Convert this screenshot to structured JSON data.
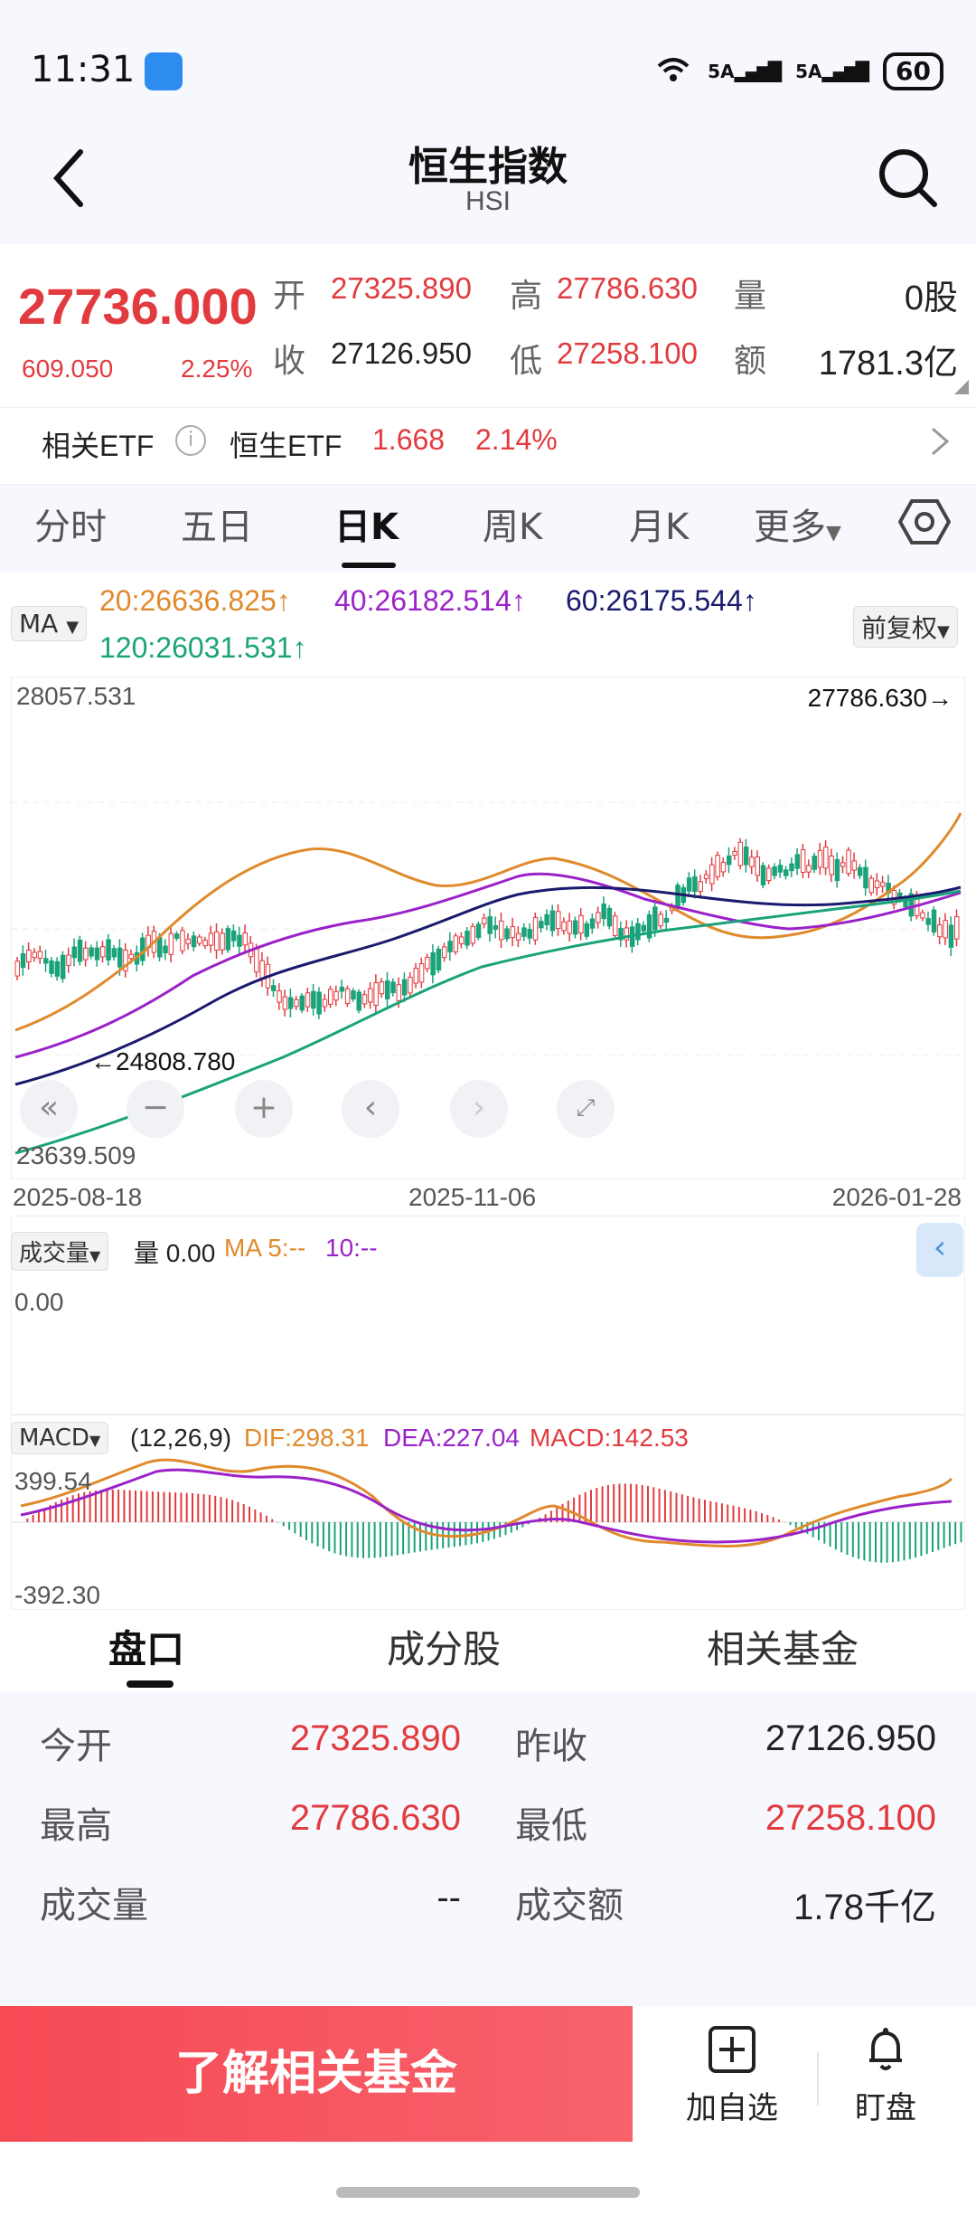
{
  "status_bar": {
    "time": "11:31",
    "signal1": "5A",
    "signal2": "5A",
    "battery": "60"
  },
  "header": {
    "title": "恒生指数",
    "subtitle": "HSI"
  },
  "quote": {
    "price": "27736.000",
    "change": "609.050",
    "change_pct": "2.25%",
    "open_label": "开",
    "open": "27325.890",
    "high_label": "高",
    "high": "27786.630",
    "volume_label": "量",
    "volume": "0股",
    "close_label": "收",
    "prev_close": "27126.950",
    "low_label": "低",
    "low": "27258.100",
    "amount_label": "额",
    "amount": "1781.3亿"
  },
  "etf": {
    "label": "相关ETF",
    "info_icon": "i",
    "name": "恒生ETF",
    "price": "1.668",
    "pct": "2.14%"
  },
  "tabs": [
    "分时",
    "五日",
    "日K",
    "周K",
    "月K",
    "更多"
  ],
  "active_tab": "日K",
  "ma": {
    "button": "MA",
    "ma20": "20:26636.825↑",
    "ma40": "40:26182.514↑",
    "ma60": "60:26175.544↑",
    "ma120": "120:26031.531↑",
    "adjust": "前复权",
    "colors": {
      "ma20": "#e08a2c",
      "ma40": "#9b22c8",
      "ma60": "#1a1a6e",
      "ma120": "#1aa37a"
    }
  },
  "kline": {
    "y_top": "28057.531",
    "y_bottom": "23639.509",
    "max_marker": "27786.630→",
    "min_marker": "←24808.780",
    "dates": [
      "2025-08-18",
      "2025-11-06",
      "2026-01-28"
    ]
  },
  "volume_panel": {
    "button": "成交量",
    "label": "量 0.00",
    "ma5": "MA 5:--",
    "ma10": "10:--",
    "y_top": "0.00"
  },
  "macd_panel": {
    "button": "MACD",
    "params": "(12,26,9)",
    "dif": "DIF:298.31",
    "dea": "DEA:227.04",
    "macd": "MACD:142.53",
    "y_top": "399.54",
    "y_bottom": "-392.30"
  },
  "bottom_tabs": [
    "盘口",
    "成分股",
    "相关基金"
  ],
  "info": {
    "today_open_label": "今开",
    "today_open": "27325.890",
    "prev_close_label": "昨收",
    "prev_close": "27126.950",
    "high_label": "最高",
    "high": "27786.630",
    "low_label": "最低",
    "low": "27258.100",
    "volume_label": "成交量",
    "volume": "--",
    "amount_label": "成交额",
    "amount": "1.78千亿"
  },
  "actions": {
    "cta": "了解相关基金",
    "add_watch": "加自选",
    "watch": "盯盘"
  }
}
